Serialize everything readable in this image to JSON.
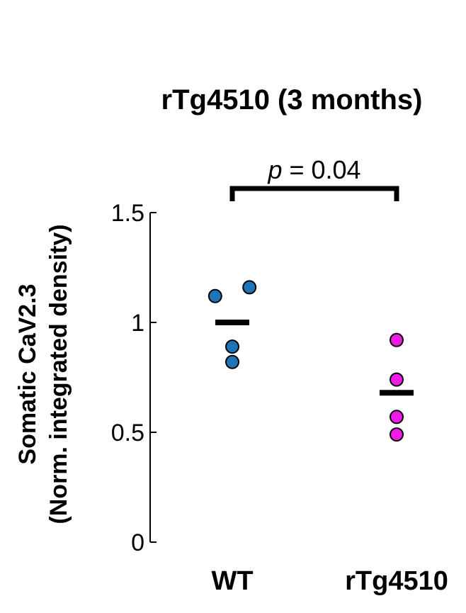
{
  "chart_data": {
    "type": "scatter",
    "title": "rTg4510 (3 months)",
    "ylabel_line1": "Somatic CaV2.3",
    "ylabel_line2": "(Norm. integrated density)",
    "xlabel": "",
    "ylim": [
      0,
      1.5
    ],
    "yticks": [
      {
        "value": 0,
        "label": "0"
      },
      {
        "value": 0.5,
        "label": "0.5"
      },
      {
        "value": 1,
        "label": "1"
      },
      {
        "value": 1.5,
        "label": "1.5"
      }
    ],
    "categories": [
      "WT",
      "rTg4510"
    ],
    "groups": [
      {
        "category": "WT",
        "color": "#1f73b7",
        "mean": 1.0,
        "points": [
          {
            "offset": -0.11,
            "value": 1.12
          },
          {
            "offset": 0.11,
            "value": 1.16
          },
          {
            "offset": 0.0,
            "value": 0.89
          },
          {
            "offset": 0.0,
            "value": 0.82
          }
        ]
      },
      {
        "category": "rTg4510",
        "color": "#ee1ce6",
        "mean": 0.68,
        "points": [
          {
            "offset": 0.0,
            "value": 0.92
          },
          {
            "offset": 0.0,
            "value": 0.74
          },
          {
            "offset": 0.0,
            "value": 0.57
          },
          {
            "offset": 0.0,
            "value": 0.49
          }
        ]
      }
    ],
    "significance": {
      "p_italic": "p",
      "p_rest": " = 0.04"
    },
    "grid": false,
    "legend": "none"
  }
}
